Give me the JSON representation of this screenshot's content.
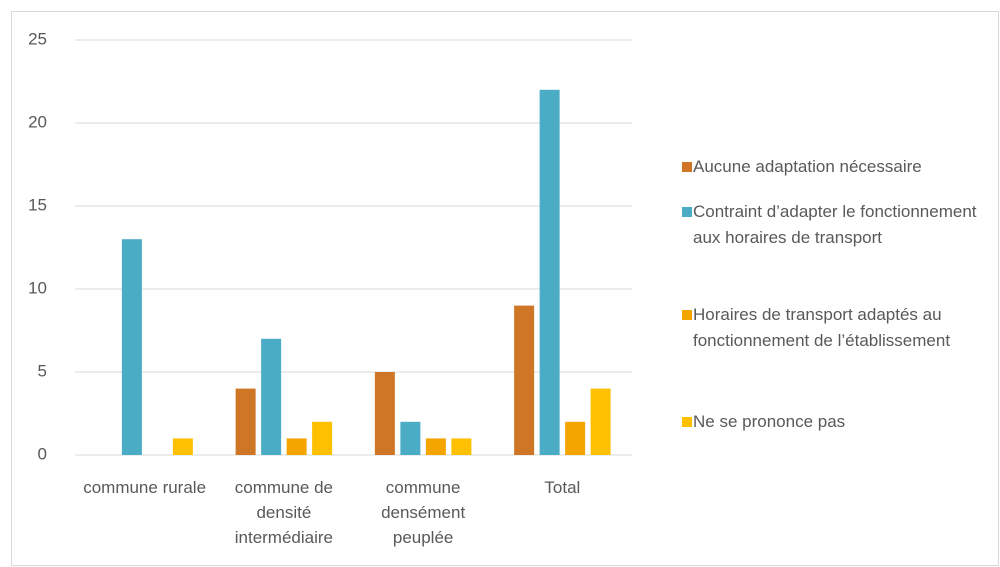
{
  "chart_data": {
    "type": "bar",
    "categories": [
      "commune rurale",
      "commune de densité intermédiaire",
      "commune densément peuplée",
      "Total"
    ],
    "series": [
      {
        "name": "Aucune adaptation nécessaire",
        "color": "#cf7626",
        "values": [
          0,
          4,
          5,
          9
        ]
      },
      {
        "name": "Contraint d’adapter le fonctionnement aux horaires de transport",
        "color": "#4bacc6",
        "values": [
          13,
          7,
          2,
          22
        ]
      },
      {
        "name": "Horaires de transport adaptés au fonctionnement de l’établissement",
        "color": "#f5a500",
        "values": [
          0,
          1,
          1,
          2
        ]
      },
      {
        "name": "Ne  se prononce pas",
        "color": "#ffc000",
        "values": [
          1,
          2,
          1,
          4
        ]
      }
    ],
    "ylim": [
      0,
      25
    ],
    "yticks": [
      0,
      5,
      10,
      15,
      20,
      25
    ],
    "grid": true,
    "legend": "right"
  }
}
